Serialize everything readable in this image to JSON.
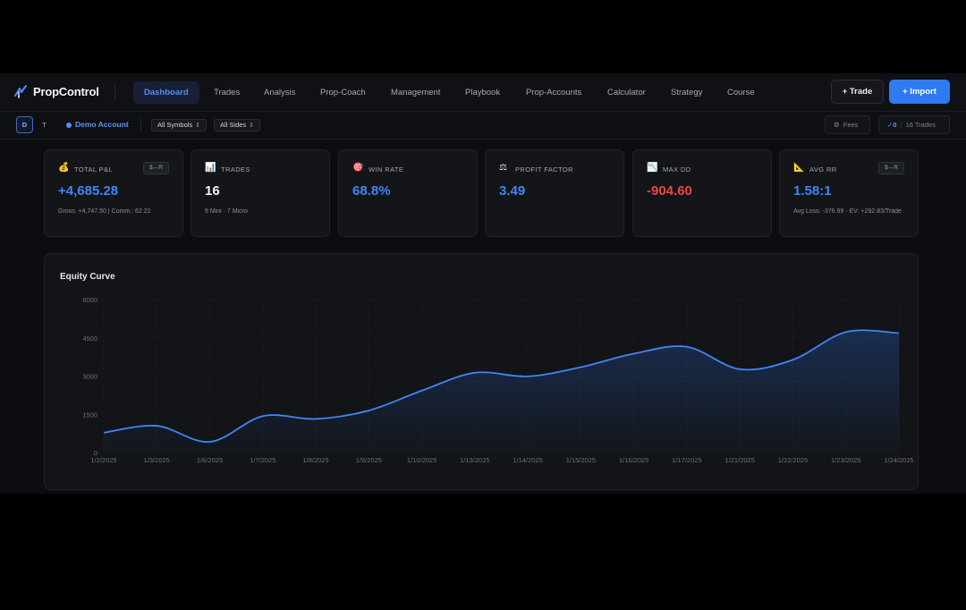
{
  "brand": {
    "name": "PropControl"
  },
  "nav": {
    "items": [
      {
        "label": "Dashboard",
        "active": true
      },
      {
        "label": "Trades",
        "active": false
      },
      {
        "label": "Analysis",
        "active": false
      },
      {
        "label": "Prop-Coach",
        "active": false
      },
      {
        "label": "Management",
        "active": false
      },
      {
        "label": "Playbook",
        "active": false
      },
      {
        "label": "Prop-Accounts",
        "active": false
      },
      {
        "label": "Calculator",
        "active": false
      },
      {
        "label": "Strategy",
        "active": false
      },
      {
        "label": "Course",
        "active": false
      }
    ],
    "trade_button": "+ Trade",
    "import_button": "+ Import"
  },
  "subbar": {
    "mode_d": "D",
    "mode_t": "T",
    "account": "Demo Account",
    "symbols_select": "All Symbols",
    "sides_select": "All Sides",
    "fees_label": "Fees",
    "selected_count": "0",
    "total_trades": "16",
    "trades_label": "Trades"
  },
  "cards": {
    "total_pnl": {
      "icon": "money-bag-icon",
      "label": "TOTAL P&L",
      "badge": "$↔R",
      "value": "+4,685.28",
      "sub": "Gross: +4,747.50 | Comm.: 62.22"
    },
    "trades": {
      "icon": "bar-chart-icon",
      "label": "TRADES",
      "value": "16",
      "sub": "9 Mini · 7 Micro"
    },
    "win_rate": {
      "icon": "target-icon",
      "label": "WIN RATE",
      "value": "68.8%"
    },
    "profit_factor": {
      "icon": "scale-icon",
      "label": "PROFIT FACTOR",
      "value": "3.49"
    },
    "max_dd": {
      "icon": "chart-down-icon",
      "label": "MAX DD",
      "value": "-904.60"
    },
    "avg_rr": {
      "icon": "ruler-triangle-icon",
      "label": "AVG RR",
      "badge": "$↔R",
      "value": "1.58:1",
      "sub": "Avg Loss: -376.99 · EV: +292.83/Trade"
    }
  },
  "colors": {
    "accent": "#2f7af3",
    "positive": "#3f86f5",
    "negative": "#ef4444",
    "background": "#0c0d10",
    "card": "#131519"
  },
  "chart_data": {
    "type": "area",
    "title": "Equity Curve",
    "xlabel": "",
    "ylabel": "",
    "x": [
      "1/2/2025",
      "1/3/2025",
      "1/6/2025",
      "1/7/2025",
      "1/8/2025",
      "1/9/2025",
      "1/10/2025",
      "1/13/2025",
      "1/14/2025",
      "1/15/2025",
      "1/16/2025",
      "1/17/2025",
      "1/21/2025",
      "1/22/2025",
      "1/23/2025",
      "1/24/2025"
    ],
    "y": [
      780,
      1050,
      420,
      1430,
      1320,
      1650,
      2430,
      3130,
      2990,
      3350,
      3880,
      4150,
      3270,
      3640,
      4730,
      4685
    ],
    "y_ticks": [
      0,
      1500,
      3000,
      4500,
      6000
    ],
    "ylim": [
      0,
      6000
    ],
    "grid": true,
    "legend": "none"
  }
}
